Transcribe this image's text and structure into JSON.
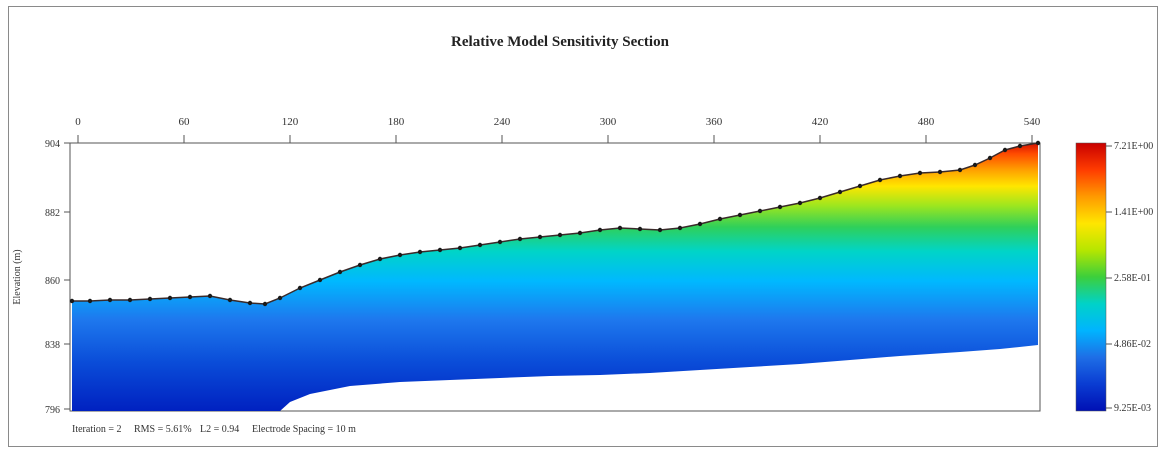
{
  "title": "Relative Model Sensitivity Section",
  "y_axis_label": "Elevation (m)",
  "x_ticks": [
    "0",
    "60",
    "120",
    "180",
    "240",
    "300",
    "360",
    "420",
    "480",
    "540"
  ],
  "y_ticks": [
    "904",
    "882",
    "860",
    "838",
    "796"
  ],
  "colorbar_labels": [
    "7.21E+00",
    "1.41E+00",
    "2.58E-01",
    "4.86E-02",
    "9.25E-03"
  ],
  "colorbar_colors": [
    "#c80000",
    "#ff3c00",
    "#ff9a00",
    "#ffe600",
    "#b6e600",
    "#3ccf3c",
    "#00d2c8",
    "#00b4ff",
    "#1e6ee6",
    "#0a3cd2",
    "#0010b4"
  ],
  "footer": {
    "iteration": "Iteration = 2",
    "rms": "RMS = 5.61%",
    "l2": "L2 = 0.94",
    "spacing": "Electrode Spacing = 10 m"
  }
}
